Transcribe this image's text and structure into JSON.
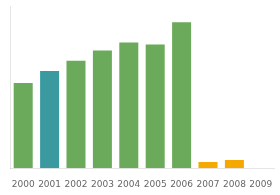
{
  "chart_data": {
    "type": "bar",
    "categories": [
      "2000",
      "2001",
      "2002",
      "2003",
      "2004",
      "2005",
      "2006",
      "2007",
      "2008",
      "2009"
    ],
    "values": [
      42,
      48,
      53,
      58,
      62,
      61,
      72,
      3,
      4,
      0
    ],
    "colors": [
      "#6aaa5a",
      "#3a9aa0",
      "#6aaa5a",
      "#6aaa5a",
      "#6aaa5a",
      "#6aaa5a",
      "#6aaa5a",
      "#f5a800",
      "#f5a800",
      "#f5a800"
    ],
    "ylim": [
      0,
      80
    ],
    "grid": false,
    "tick_labels": "x"
  }
}
